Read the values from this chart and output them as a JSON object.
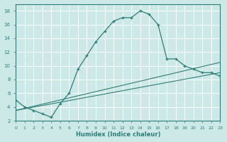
{
  "xlabel": "Humidex (Indice chaleur)",
  "bg_color": "#cce9e8",
  "grid_color": "#ffffff",
  "line_color": "#2e7d78",
  "xlim": [
    0,
    23
  ],
  "ylim": [
    2,
    19
  ],
  "xticks": [
    0,
    1,
    2,
    3,
    4,
    5,
    6,
    7,
    8,
    9,
    10,
    11,
    12,
    13,
    14,
    15,
    16,
    17,
    18,
    19,
    20,
    21,
    22,
    23
  ],
  "yticks": [
    2,
    4,
    6,
    8,
    10,
    12,
    14,
    16,
    18
  ],
  "curve1_x": [
    0,
    1,
    2,
    3,
    4,
    5,
    6,
    7,
    8,
    9,
    10,
    11,
    12,
    13,
    14,
    15,
    16,
    17,
    18,
    19,
    20,
    21,
    22,
    23
  ],
  "curve1_y": [
    5,
    4,
    3.5,
    3,
    2.5,
    4.5,
    6,
    9.5,
    11.5,
    13.5,
    15,
    16.5,
    17,
    17,
    18,
    17.5,
    16,
    11,
    11,
    10,
    9.5,
    9,
    9,
    8.5
  ],
  "curve2_x": [
    0,
    23
  ],
  "curve2_y": [
    3.5,
    9.0
  ],
  "curve3_x": [
    0,
    23
  ],
  "curve3_y": [
    3.5,
    10.5
  ]
}
